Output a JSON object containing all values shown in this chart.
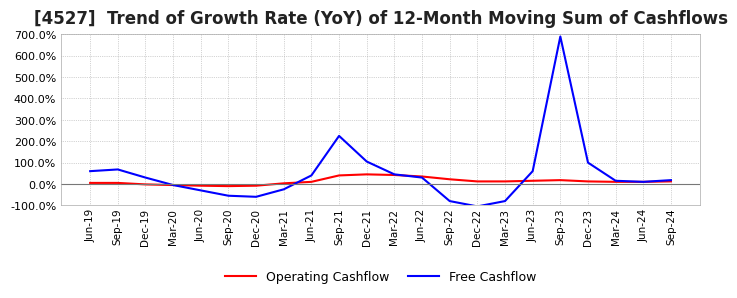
{
  "title": "[4527]  Trend of Growth Rate (YoY) of 12-Month Moving Sum of Cashflows",
  "title_fontsize": 12,
  "ylim": [
    -100,
    700
  ],
  "yticks": [
    -100,
    0,
    100,
    200,
    300,
    400,
    500,
    600,
    700
  ],
  "background_color": "#ffffff",
  "plot_bg_color": "#ffffff",
  "grid_color": "#aaaaaa",
  "legend_labels": [
    "Operating Cashflow",
    "Free Cashflow"
  ],
  "line_colors": [
    "#ff0000",
    "#0000ff"
  ],
  "x_labels": [
    "Jun-19",
    "Sep-19",
    "Dec-19",
    "Mar-20",
    "Jun-20",
    "Sep-20",
    "Dec-20",
    "Mar-21",
    "Jun-21",
    "Sep-21",
    "Dec-21",
    "Mar-22",
    "Jun-22",
    "Sep-22",
    "Dec-22",
    "Mar-23",
    "Jun-23",
    "Sep-23",
    "Dec-23",
    "Mar-24",
    "Jun-24",
    "Sep-24"
  ],
  "operating_cashflow": [
    5,
    5,
    -2,
    -5,
    -8,
    -10,
    -8,
    3,
    10,
    40,
    45,
    42,
    35,
    22,
    12,
    12,
    15,
    18,
    12,
    10,
    10,
    12
  ],
  "free_cashflow": [
    60,
    68,
    30,
    -5,
    -30,
    -55,
    -60,
    -25,
    40,
    225,
    105,
    45,
    30,
    -80,
    -105,
    -80,
    60,
    690,
    100,
    15,
    10,
    18
  ]
}
